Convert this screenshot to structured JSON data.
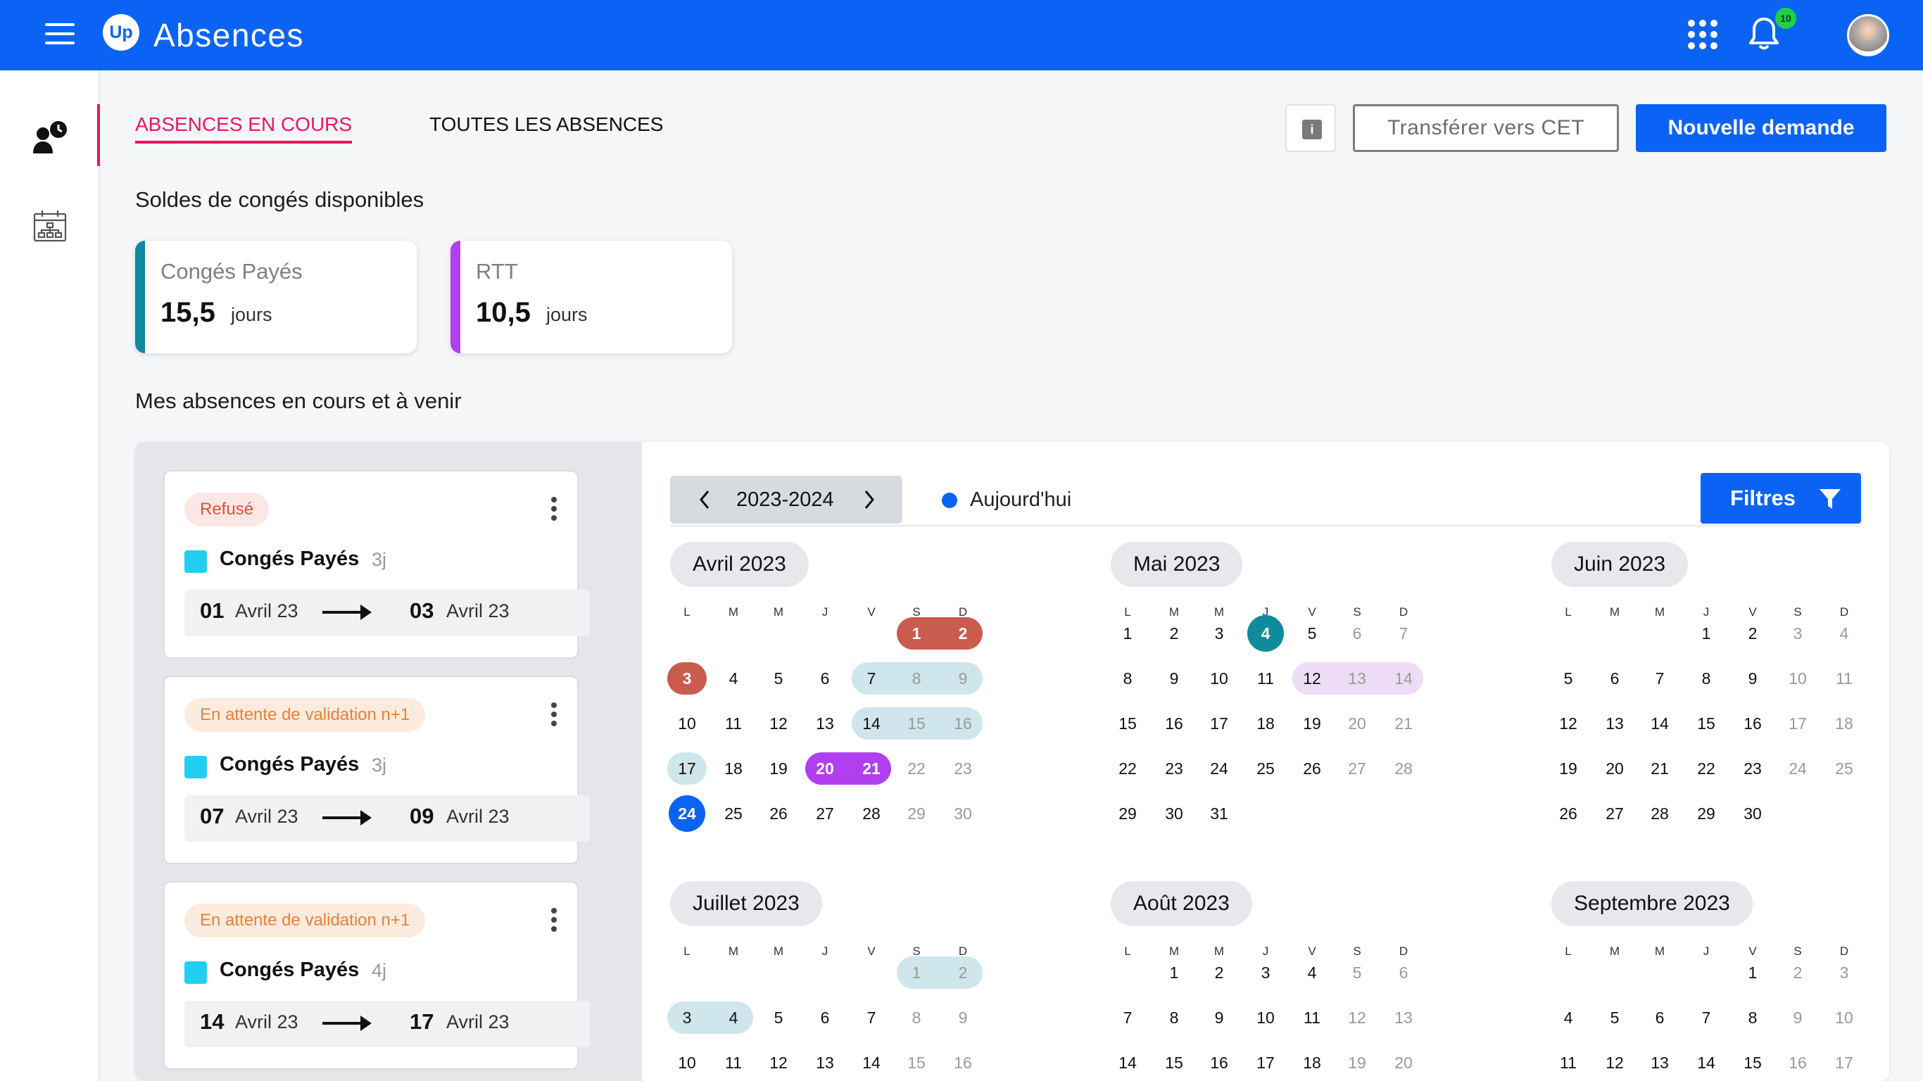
{
  "app": {
    "title": "Absences",
    "logo_text": "Up",
    "notification_count": "10"
  },
  "tabs": [
    {
      "label": "ABSENCES EN COURS",
      "active": true
    },
    {
      "label": "TOUTES LES ABSENCES",
      "active": false
    }
  ],
  "actions": {
    "transfer_label": "Transférer vers CET",
    "new_label": "Nouvelle demande"
  },
  "balances": {
    "title": "Soldes de congés disponibles",
    "items": [
      {
        "name": "Congés Payés",
        "value": "15,5",
        "unit": "jours",
        "color": "#0e8b9c"
      },
      {
        "name": "RTT",
        "value": "10,5",
        "unit": "jours",
        "color": "#b13ff0"
      }
    ]
  },
  "absences_title": "Mes absences en cours et à venir",
  "requests": [
    {
      "status": "Refusé",
      "type": "Congés Payés",
      "duration": "3j",
      "start_day": "01",
      "start_month": "Avril 23",
      "end_day": "03",
      "end_month": "Avril 23"
    },
    {
      "status": "En attente de validation n+1",
      "type": "Congés Payés",
      "duration": "3j",
      "start_day": "07",
      "start_month": "Avril 23",
      "end_day": "09",
      "end_month": "Avril 23"
    },
    {
      "status": "En attente de validation n+1",
      "type": "Congés Payés",
      "duration": "4j",
      "start_day": "14",
      "start_month": "Avril 23",
      "end_day": "17",
      "end_month": "Avril 23"
    }
  ],
  "calendar": {
    "year_label": "2023-2024",
    "today_label": "Aujourd'hui",
    "filter_label": "Filtres",
    "weekdays": [
      "L",
      "M",
      "M",
      "J",
      "V",
      "S",
      "D"
    ],
    "colors": {
      "refused": "#c95c4f",
      "pending": "#cfe6ec",
      "rtt_pending": "#eedcf7",
      "rtt": "#b13ff0",
      "today": "#0b63f6",
      "holiday": "#0e8b9c"
    },
    "months": [
      {
        "name": "Avril 2023",
        "offset": 5,
        "days": 30,
        "bands": [
          {
            "from": 1,
            "to": 3,
            "style": "refused"
          },
          {
            "from": 7,
            "to": 9,
            "style": "pending"
          },
          {
            "from": 14,
            "to": 17,
            "style": "pending"
          },
          {
            "from": 20,
            "to": 21,
            "style": "rtt"
          }
        ],
        "circles": [
          {
            "day": 24,
            "style": "today"
          }
        ]
      },
      {
        "name": "Mai 2023",
        "offset": 0,
        "days": 31,
        "bands": [
          {
            "from": 12,
            "to": 14,
            "style": "rtt_pending"
          }
        ],
        "circles": [
          {
            "day": 4,
            "style": "holiday"
          }
        ]
      },
      {
        "name": "Juin 2023",
        "offset": 3,
        "days": 30,
        "bands": [],
        "circles": []
      },
      {
        "name": "Juillet 2023",
        "offset": 5,
        "days": 31,
        "bands": [
          {
            "from": 1,
            "to": 4,
            "style": "pending",
            "clip_from_week": 2
          }
        ],
        "circles": []
      },
      {
        "name": "Août 2023",
        "offset": 1,
        "days": 31,
        "bands": [],
        "circles": []
      },
      {
        "name": "Septembre 2023",
        "offset": 4,
        "days": 30,
        "bands": [],
        "circles": []
      }
    ]
  }
}
